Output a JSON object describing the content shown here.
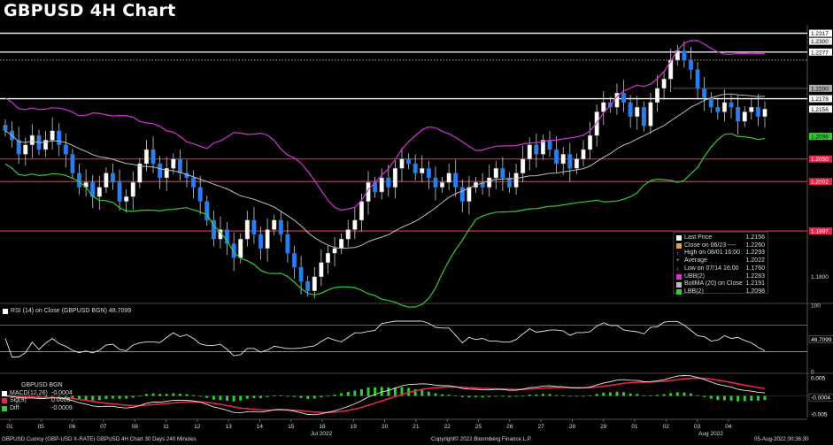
{
  "title": "GBPUSD 4H Chart",
  "colors": {
    "background": "#000000",
    "candle_up": "#ffffff",
    "candle_down": "#2a7ff0",
    "sma": "#bdbdbd",
    "upper_band": "#d633d6",
    "lower_band": "#33cc33",
    "support_resistance": "#e0284a",
    "white_level": "#ffffff",
    "last_close": "#e0a040"
  },
  "price_axis": {
    "ylim": [
      1.1745,
      1.2335
    ],
    "ticks": [
      "1.2317",
      "1.2300",
      "1.2277",
      "1.2200",
      "1.2178",
      "1.2156",
      "1.2098",
      "1.2050",
      "1.2002",
      "1.1897",
      "1.1800"
    ],
    "tick_values": [
      1.2317,
      1.23,
      1.2277,
      1.22,
      1.2178,
      1.2156,
      1.2098,
      1.205,
      1.2002,
      1.1897,
      1.18
    ]
  },
  "x_axis": {
    "days": [
      "01",
      "05",
      "06",
      "07",
      "08",
      "11",
      "12",
      "13",
      "14",
      "15",
      "18",
      "19",
      "20",
      "21",
      "22",
      "25",
      "26",
      "27",
      "28",
      "29",
      "01",
      "02",
      "03",
      "04"
    ],
    "months": [
      "Jul 2022",
      "Aug 2022"
    ]
  },
  "levels": [
    {
      "value": 1.2317,
      "style": "white"
    },
    {
      "value": 1.2277,
      "style": "white"
    },
    {
      "value": 1.2178,
      "style": "white"
    },
    {
      "value": 1.205,
      "style": "red"
    },
    {
      "value": 1.2002,
      "style": "red"
    },
    {
      "value": 1.1897,
      "style": "red"
    },
    {
      "value": 1.226,
      "style": "dotted"
    }
  ],
  "legend": [
    {
      "label": "Last Price",
      "value": "1.2156",
      "color": "#ffffff"
    },
    {
      "label": "Close on 06/23 ----",
      "value": "1.2260",
      "color": "#e0a040"
    },
    {
      "label": "High on 08/01 16:00",
      "value": "1.2293",
      "color": "#000000",
      "glyph": "↑"
    },
    {
      "label": "Average",
      "value": "1.2022",
      "color": "#000000",
      "glyph": "+"
    },
    {
      "label": "Low on 07/14 16:00",
      "value": "1.1760",
      "color": "#000000",
      "glyph": "↓"
    },
    {
      "label": "UBB(2)",
      "value": "1.2283",
      "color": "#d633d6"
    },
    {
      "label": "BollMA (20)  on Close",
      "value": "1.2191",
      "color": "#bdbdbd"
    },
    {
      "label": "LBB(2)",
      "value": "1.2098",
      "color": "#33cc33"
    }
  ],
  "rsi": {
    "label": "RSI (14)  on Close (GBPUSD BGN) 48.7099",
    "value_label": "48.7099",
    "ticks": [
      "100",
      "50",
      "0"
    ]
  },
  "macd": {
    "header": "GBPUSD BGN",
    "rows": [
      {
        "label": "MACD(12,26)",
        "value": "-0.0004",
        "color": "#ffffff"
      },
      {
        "label": "Sig(9)",
        "value": "0.0006",
        "color": "#e0284a"
      },
      {
        "label": "Diff",
        "value": "-0.0009",
        "color": "#33cc33"
      }
    ],
    "ticks": [
      "0.005",
      "-0.0004",
      "-0.005"
    ]
  },
  "footer": {
    "left": "GBPUSD Curncy (GBP-USD X-RATE) GBPUSD 4H Chart 30 Days 240 Minutes",
    "center": "Copyright© 2022 Bloomberg Finance L.P.",
    "right": "05-Aug-2022 00:36:30"
  },
  "chart_data": {
    "type": "candlestick",
    "title": "GBPUSD 4H Chart",
    "last_price": 1.2156,
    "bollinger": {
      "upper": 1.2283,
      "middle": 1.2191,
      "lower": 1.2098
    },
    "series_close": [
      1.211,
      1.209,
      1.206,
      1.208,
      1.21,
      1.207,
      1.209,
      1.211,
      1.208,
      1.206,
      1.202,
      1.199,
      1.2,
      1.197,
      1.199,
      1.202,
      1.2,
      1.196,
      1.197,
      1.2,
      1.204,
      1.207,
      1.204,
      1.201,
      1.203,
      1.205,
      1.202,
      1.201,
      1.199,
      1.196,
      1.192,
      1.188,
      1.19,
      1.187,
      1.184,
      1.188,
      1.192,
      1.189,
      1.186,
      1.19,
      1.192,
      1.189,
      1.185,
      1.182,
      1.179,
      1.177,
      1.18,
      1.183,
      1.185,
      1.186,
      1.188,
      1.19,
      1.192,
      1.196,
      1.2,
      1.198,
      1.201,
      1.199,
      1.203,
      1.205,
      1.204,
      1.202,
      1.203,
      1.201,
      1.199,
      1.2,
      1.202,
      1.199,
      1.196,
      1.199,
      1.2,
      1.199,
      1.201,
      1.203,
      1.201,
      1.199,
      1.202,
      1.205,
      1.208,
      1.206,
      1.209,
      1.207,
      1.204,
      1.206,
      1.203,
      1.205,
      1.207,
      1.21,
      1.215,
      1.217,
      1.216,
      1.219,
      1.217,
      1.214,
      1.216,
      1.212,
      1.217,
      1.22,
      1.222,
      1.226,
      1.228,
      1.226,
      1.224,
      1.22,
      1.218,
      1.216,
      1.215,
      1.217,
      1.216,
      1.213,
      1.215,
      1.216,
      1.214,
      1.2156
    ],
    "indicators": [
      "BollMA(20)",
      "UBB(2)",
      "LBB(2)",
      "RSI(14)",
      "MACD(12,26)",
      "Sig(9)"
    ]
  }
}
